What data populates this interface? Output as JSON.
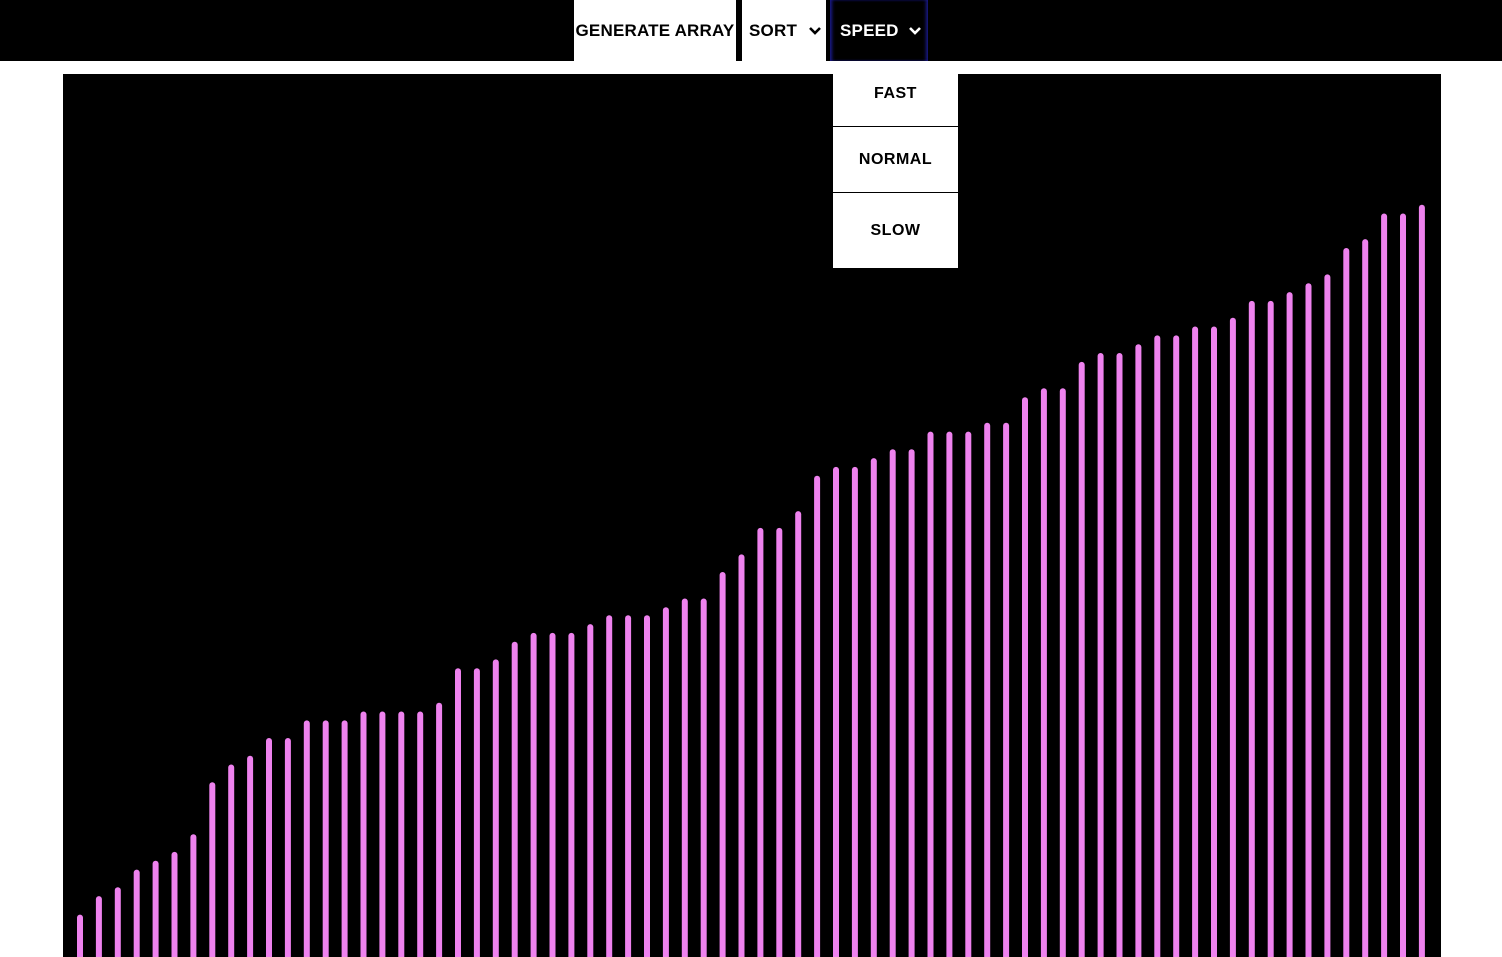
{
  "navbar": {
    "generate_label": "GENERATE ARRAY",
    "sort_label": "SORT",
    "speed_label": "SPEED",
    "chevron_icon": "chevron-down-icon"
  },
  "speed_menu": {
    "items": [
      "FAST",
      "NORMAL",
      "SLOW"
    ]
  },
  "colors": {
    "navbar_bg": "#000000",
    "canvas_bg": "#000000",
    "bar": "#ee82ee"
  },
  "chart_data": {
    "type": "bar",
    "ylim": [
      0,
      100
    ],
    "values": [
      4.8,
      6.9,
      7.9,
      9.9,
      10.9,
      11.9,
      13.9,
      19.8,
      21.8,
      22.8,
      24.8,
      24.8,
      26.8,
      26.8,
      26.8,
      27.8,
      27.8,
      27.8,
      27.8,
      28.8,
      32.7,
      32.7,
      33.7,
      35.7,
      36.7,
      36.7,
      36.7,
      37.7,
      38.7,
      38.7,
      38.7,
      39.6,
      40.6,
      40.6,
      43.6,
      45.6,
      48.6,
      48.6,
      50.5,
      54.5,
      55.5,
      55.5,
      56.5,
      57.5,
      57.5,
      59.5,
      59.5,
      59.5,
      60.5,
      60.5,
      63.4,
      64.4,
      64.4,
      67.4,
      68.4,
      68.4,
      69.4,
      70.4,
      70.4,
      71.4,
      71.4,
      72.4,
      74.3,
      74.3,
      75.3,
      76.3,
      77.3,
      80.3,
      81.3,
      84.2,
      84.2,
      85.2
    ]
  }
}
